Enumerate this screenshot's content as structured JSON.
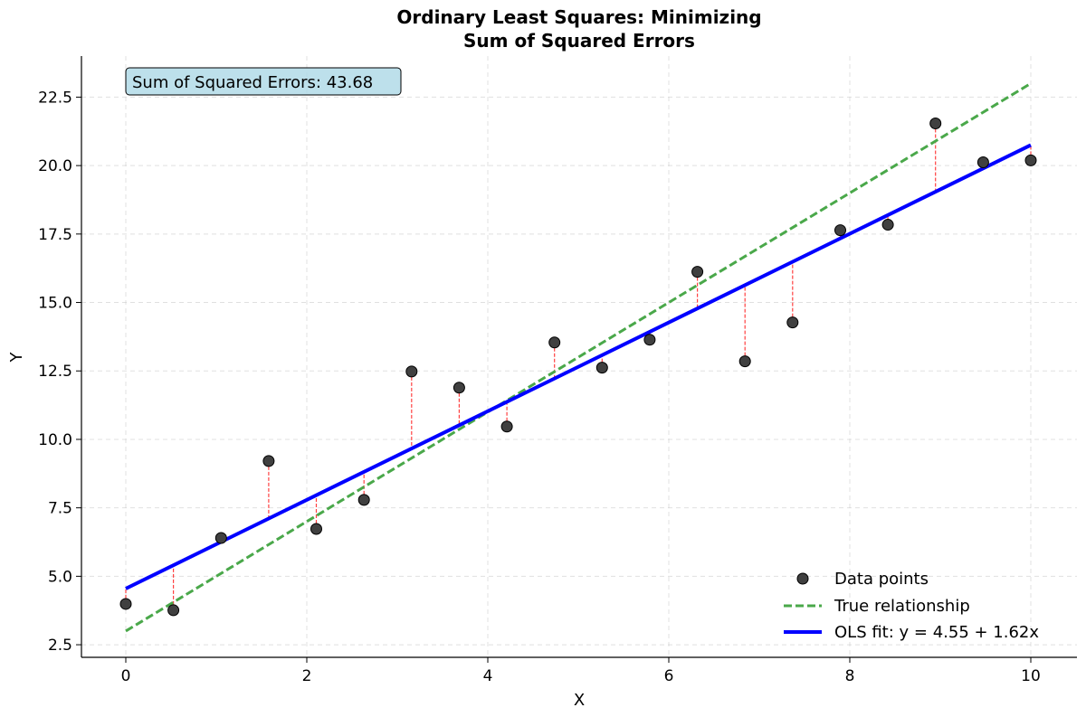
{
  "chart_data": {
    "type": "scatter",
    "title_line1": "Ordinary Least Squares: Minimizing",
    "title_line2": "Sum of Squared Errors",
    "xlabel": "X",
    "ylabel": "Y",
    "xlim": [
      -0.49,
      10.51
    ],
    "ylim": [
      2.04,
      24.0
    ],
    "xticks": [
      0,
      2,
      4,
      6,
      8,
      10
    ],
    "xtick_labels": [
      "0",
      "2",
      "4",
      "6",
      "8",
      "10"
    ],
    "yticks": [
      2.5,
      5.0,
      7.5,
      10.0,
      12.5,
      15.0,
      17.5,
      20.0,
      22.5
    ],
    "ytick_labels": [
      "2.5",
      "5.0",
      "7.5",
      "10.0",
      "12.5",
      "15.0",
      "17.5",
      "20.0",
      "22.5"
    ],
    "grid": true,
    "legend_placement": "lower-right",
    "annotation": "Sum of Squared Errors: 43.68",
    "points": {
      "name": "Data points",
      "color": "#404040",
      "x": [
        0,
        0.526,
        1.053,
        1.579,
        2.105,
        2.632,
        3.158,
        3.684,
        4.211,
        4.737,
        5.263,
        5.789,
        6.316,
        6.842,
        7.368,
        7.895,
        8.421,
        8.947,
        9.474,
        10
      ],
      "y": [
        3.99,
        3.76,
        6.4,
        9.21,
        6.73,
        7.79,
        12.48,
        11.89,
        10.47,
        13.54,
        12.62,
        13.64,
        16.12,
        12.85,
        14.27,
        17.64,
        17.84,
        21.54,
        20.12,
        20.19
      ]
    },
    "true_line": {
      "name": "True relationship",
      "intercept": 3,
      "slope": 2,
      "color": "#4aa84a"
    },
    "ols_line": {
      "name": "OLS fit: y = 4.55 + 1.62x",
      "intercept": 4.55,
      "slope": 1.62,
      "color": "#0000ff"
    },
    "residual_color": "#ff4040"
  }
}
